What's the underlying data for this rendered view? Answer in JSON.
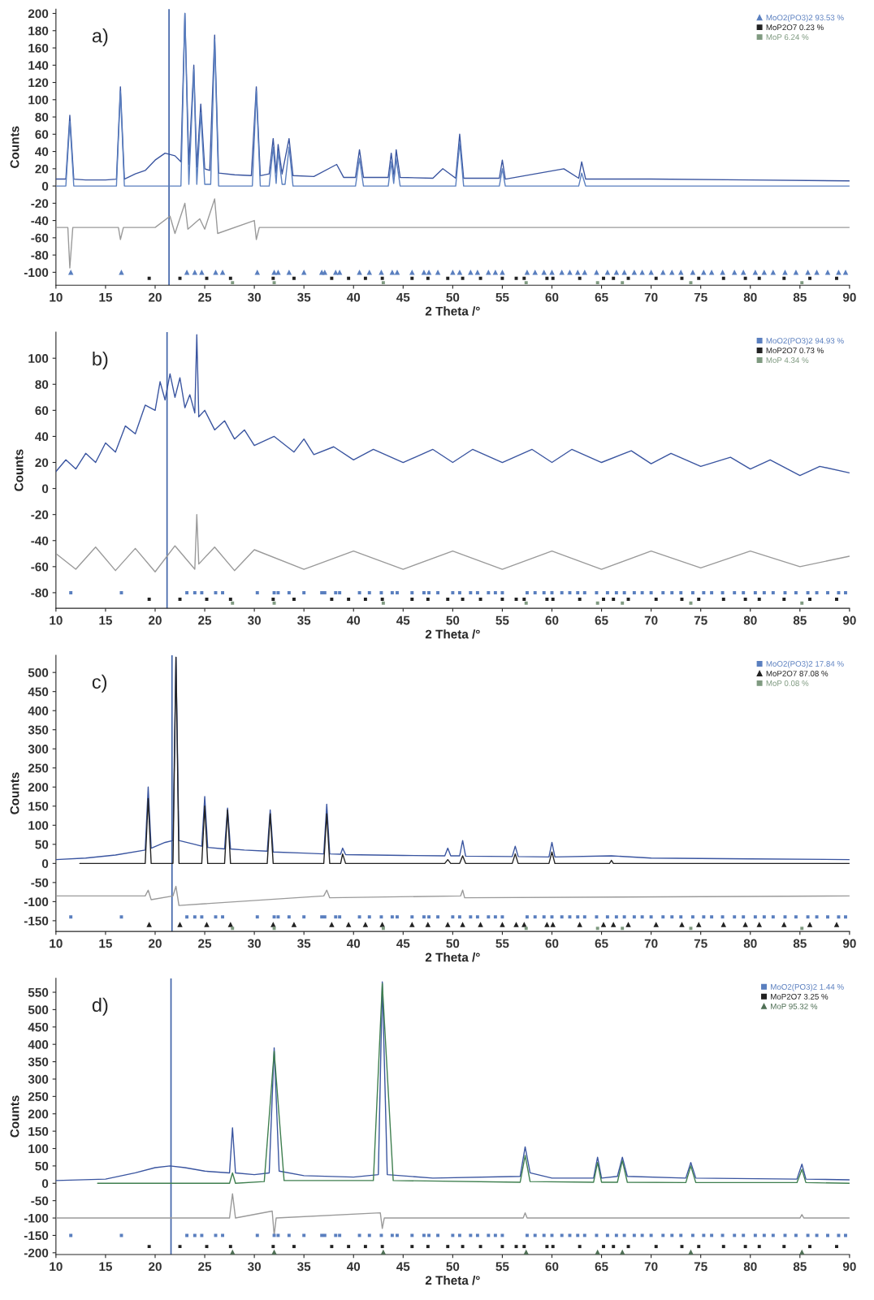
{
  "chart_data": [
    {
      "type": "line",
      "title": "a)",
      "xlabel": "2 Theta /°",
      "ylabel": "Counts",
      "xlim": [
        10,
        90
      ],
      "xticks": [
        10,
        15,
        20,
        25,
        30,
        35,
        40,
        45,
        50,
        55,
        60,
        65,
        70,
        75,
        80,
        85,
        90
      ],
      "ylim": [
        -115,
        205
      ],
      "yticks": [
        -100,
        -80,
        -60,
        -40,
        -20,
        0,
        20,
        40,
        60,
        80,
        100,
        120,
        140,
        160,
        180,
        200
      ],
      "grid": false,
      "legend": "top right",
      "ref_lines": [
        {
          "axis": "x",
          "value": 21.4,
          "color": "#3f63a8"
        }
      ],
      "series": [
        {
          "type": "line",
          "color": "#3a55a0",
          "x": [
            10,
            11.0,
            11.4,
            11.8,
            13,
            15,
            16.1,
            16.5,
            16.9,
            18,
            19,
            20,
            21,
            22,
            22.6,
            23.0,
            23.4,
            23.9,
            24.2,
            24.6,
            25.0,
            25.5,
            26.0,
            26.4,
            28,
            29.7,
            30.2,
            30.6,
            31.5,
            31.9,
            32.2,
            32.4,
            32.8,
            33.5,
            33.9,
            36,
            38.3,
            39,
            40.2,
            40.6,
            41,
            43.5,
            43.8,
            44.1,
            44.3,
            44.7,
            48,
            49,
            50.3,
            50.7,
            51.1,
            54.7,
            55,
            55.3,
            61.2,
            62.7,
            63,
            63.4,
            70,
            80,
            90
          ],
          "values": [
            8,
            8,
            82,
            8,
            7,
            7,
            8,
            115,
            8,
            14,
            18,
            30,
            38,
            35,
            28,
            200,
            25,
            140,
            22,
            95,
            20,
            18,
            175,
            15,
            13,
            12,
            115,
            12,
            14,
            55,
            15,
            48,
            14,
            55,
            12,
            11,
            25,
            10,
            10,
            42,
            10,
            10,
            38,
            10,
            42,
            10,
            9,
            20,
            9,
            60,
            9,
            9,
            30,
            8,
            20,
            9,
            28,
            8,
            8,
            7,
            6
          ]
        },
        {
          "type": "line",
          "color": "#5a7fbf",
          "x": [
            10,
            11.0,
            11.4,
            11.8,
            16.1,
            16.5,
            16.9,
            22.6,
            23.0,
            23.4,
            23.9,
            24.2,
            24.6,
            25.0,
            25.6,
            26.0,
            26.4,
            29.8,
            30.2,
            30.6,
            31.5,
            31.9,
            32.2,
            32.4,
            32.8,
            33.1,
            33.5,
            33.9,
            40.2,
            40.6,
            41,
            43.5,
            43.8,
            44.05,
            44.3,
            44.7,
            50.3,
            50.7,
            51.1,
            54.7,
            55,
            55.3,
            62.7,
            63,
            63.4,
            90
          ],
          "values": [
            0,
            0,
            75,
            0,
            0,
            110,
            0,
            0,
            200,
            2,
            135,
            2,
            85,
            2,
            2,
            170,
            0,
            0,
            110,
            0,
            0,
            45,
            3,
            40,
            2,
            2,
            45,
            0,
            0,
            32,
            0,
            0,
            28,
            3,
            32,
            0,
            0,
            50,
            0,
            0,
            20,
            0,
            0,
            15,
            0,
            0
          ]
        },
        {
          "type": "line",
          "color": "#9a9a9a",
          "x": [
            10,
            11.2,
            11.4,
            11.7,
            16.3,
            16.5,
            16.8,
            20,
            21.5,
            22,
            23.0,
            23.3,
            24.5,
            25,
            26.0,
            26.3,
            30.0,
            30.2,
            30.5,
            50,
            90
          ],
          "values": [
            -48,
            -48,
            -95,
            -48,
            -48,
            -62,
            -48,
            -48,
            -35,
            -55,
            -20,
            -50,
            -38,
            -50,
            -15,
            -55,
            -40,
            -62,
            -48,
            -48,
            -48
          ]
        },
        {
          "type": "scatter",
          "name": "MoO2(PO3)2 93.53 %",
          "color": "#5a7fbf",
          "marker": "triangle",
          "x": [
            11.5,
            16.6,
            23.2,
            24.0,
            24.7,
            26.1,
            26.8,
            30.3,
            32.0,
            32.4,
            33.5,
            35.0,
            36.8,
            37.1,
            38.2,
            38.6,
            40.6,
            41.6,
            42.8,
            43.9,
            44.4,
            45.9,
            47.1,
            47.6,
            48.5,
            50.0,
            50.7,
            51.8,
            52.5,
            53.6,
            54.3,
            55.0,
            57.5,
            58.3,
            59.2,
            60.0,
            61.0,
            61.8,
            62.6,
            63.3,
            64.5,
            65.6,
            66.5,
            67.3,
            68.3,
            69.1,
            70.0,
            71.2,
            72.1,
            73.0,
            74.2,
            75.3,
            76.1,
            77.2,
            78.4,
            79.3,
            80.5,
            81.4,
            82.3,
            83.5,
            84.6,
            85.8,
            86.7,
            87.8,
            88.9,
            89.6
          ],
          "values": [
            -100,
            -100,
            -100,
            -100,
            -100,
            -100,
            -100,
            -100,
            -100,
            -100,
            -100,
            -100,
            -100,
            -100,
            -100,
            -100,
            -100,
            -100,
            -100,
            -100,
            -100,
            -100,
            -100,
            -100,
            -100,
            -100,
            -100,
            -100,
            -100,
            -100,
            -100,
            -100,
            -100,
            -100,
            -100,
            -100,
            -100,
            -100,
            -100,
            -100,
            -100,
            -100,
            -100,
            -100,
            -100,
            -100,
            -100,
            -100,
            -100,
            -100,
            -100,
            -100,
            -100,
            -100,
            -100,
            -100,
            -100,
            -100,
            -100,
            -100,
            -100,
            -100,
            -100,
            -100,
            -100,
            -100
          ]
        },
        {
          "type": "scatter",
          "name": "MoP2O7 0.23 %",
          "color": "#222222",
          "marker": "square",
          "x": [
            19.4,
            22.5,
            25.2,
            27.6,
            31.9,
            34.0,
            37.8,
            39.5,
            41.2,
            42.9,
            45.9,
            47.5,
            49.5,
            51.0,
            52.8,
            55.0,
            56.4,
            57.2,
            59.5,
            60.1,
            62.8,
            65.2,
            66.2,
            67.7,
            70.5,
            73.1,
            74.8,
            77.3,
            79.5,
            80.9,
            83.4,
            86.0,
            88.7
          ],
          "values": [
            -107,
            -107,
            -107,
            -107,
            -107,
            -107,
            -107,
            -107,
            -107,
            -107,
            -107,
            -107,
            -107,
            -107,
            -107,
            -107,
            -107,
            -107,
            -107,
            -107,
            -107,
            -107,
            -107,
            -107,
            -107,
            -107,
            -107,
            -107,
            -107,
            -107,
            -107,
            -107,
            -107
          ]
        },
        {
          "type": "scatter",
          "name": "MoP 6.24 %",
          "color": "#7f9a80",
          "marker": "square",
          "x": [
            27.8,
            32.0,
            43.0,
            57.4,
            64.6,
            67.1,
            74.0,
            85.2
          ],
          "values": [
            -112,
            -112,
            -112,
            -112,
            -112,
            -112,
            -112,
            -112
          ]
        }
      ]
    },
    {
      "type": "line",
      "title": "b)",
      "xlabel": "2 Theta /°",
      "ylabel": "Counts",
      "xlim": [
        10,
        90
      ],
      "xticks": [
        10,
        15,
        20,
        25,
        30,
        35,
        40,
        45,
        50,
        55,
        60,
        65,
        70,
        75,
        80,
        85,
        90
      ],
      "ylim": [
        -92,
        120
      ],
      "yticks": [
        -80,
        -60,
        -40,
        -20,
        0,
        20,
        40,
        60,
        80,
        100
      ],
      "grid": false,
      "legend": "top right",
      "ref_lines": [
        {
          "axis": "x",
          "value": 21.2,
          "color": "#3f63a8"
        }
      ],
      "series": [
        {
          "type": "line",
          "color": "#3a55a0",
          "x": [
            10,
            11,
            12,
            13,
            14,
            15,
            16,
            17,
            18,
            19,
            20,
            20.5,
            21,
            21.5,
            22,
            22.5,
            23,
            23.5,
            24,
            24.2,
            24.4,
            25,
            26,
            27,
            28,
            29,
            30,
            32,
            34,
            35,
            36,
            38,
            40,
            42,
            45,
            48,
            50,
            52,
            55,
            58,
            60,
            62,
            65,
            68,
            70,
            72,
            75,
            78,
            80,
            82,
            85,
            87,
            90
          ],
          "values": [
            13,
            22,
            15,
            27,
            20,
            35,
            28,
            48,
            42,
            64,
            60,
            82,
            68,
            88,
            70,
            85,
            62,
            72,
            58,
            118,
            55,
            60,
            45,
            52,
            38,
            45,
            33,
            40,
            28,
            38,
            26,
            32,
            22,
            30,
            20,
            30,
            20,
            30,
            20,
            30,
            20,
            30,
            20,
            29,
            19,
            27,
            17,
            24,
            15,
            22,
            10,
            17,
            12
          ]
        },
        {
          "type": "line",
          "color": "#9a9a9a",
          "x": [
            10,
            12,
            14,
            16,
            18,
            20,
            22,
            24,
            24.2,
            24.4,
            26,
            28,
            30,
            35,
            40,
            45,
            50,
            55,
            60,
            65,
            70,
            75,
            80,
            85,
            90
          ],
          "values": [
            -50,
            -62,
            -45,
            -63,
            -46,
            -64,
            -44,
            -62,
            -20,
            -58,
            -45,
            -63,
            -47,
            -62,
            -48,
            -62,
            -48,
            -62,
            -48,
            -62,
            -48,
            -61,
            -48,
            -60,
            -52
          ]
        },
        {
          "type": "scatter",
          "name": "MoO2(PO3)2 94.93 %",
          "color": "#5a7fbf",
          "marker": "square",
          "x": [
            11.5,
            16.6,
            23.2,
            24.0,
            24.7,
            26.1,
            26.8,
            30.3,
            32.0,
            32.4,
            33.5,
            35.0,
            36.8,
            37.1,
            38.2,
            38.6,
            40.6,
            41.6,
            42.8,
            43.9,
            44.4,
            45.9,
            47.1,
            47.6,
            48.5,
            50.0,
            50.7,
            51.8,
            52.5,
            53.6,
            54.3,
            55.0,
            57.5,
            58.3,
            59.2,
            60.0,
            61.0,
            61.8,
            62.6,
            63.3,
            64.5,
            65.6,
            66.5,
            67.3,
            68.3,
            69.1,
            70.0,
            71.2,
            72.1,
            73.0,
            74.2,
            75.3,
            76.1,
            77.2,
            78.4,
            79.3,
            80.5,
            81.4,
            82.3,
            83.5,
            84.6,
            85.8,
            86.7,
            87.8,
            88.9,
            89.6
          ],
          "values": [
            -80,
            -80,
            -80,
            -80,
            -80,
            -80,
            -80,
            -80,
            -80,
            -80,
            -80,
            -80,
            -80,
            -80,
            -80,
            -80,
            -80,
            -80,
            -80,
            -80,
            -80,
            -80,
            -80,
            -80,
            -80,
            -80,
            -80,
            -80,
            -80,
            -80,
            -80,
            -80,
            -80,
            -80,
            -80,
            -80,
            -80,
            -80,
            -80,
            -80,
            -80,
            -80,
            -80,
            -80,
            -80,
            -80,
            -80,
            -80,
            -80,
            -80,
            -80,
            -80,
            -80,
            -80,
            -80,
            -80,
            -80,
            -80,
            -80,
            -80,
            -80,
            -80,
            -80,
            -80,
            -80,
            -80
          ]
        },
        {
          "type": "scatter",
          "name": "MoP2O7 0.73 %",
          "color": "#222222",
          "marker": "square",
          "x": [
            19.4,
            22.5,
            25.2,
            27.6,
            31.9,
            34.0,
            37.8,
            39.5,
            41.2,
            42.9,
            45.9,
            47.5,
            49.5,
            51.0,
            52.8,
            55.0,
            56.4,
            57.2,
            59.5,
            60.1,
            62.8,
            65.2,
            66.2,
            67.7,
            70.5,
            73.1,
            74.8,
            77.3,
            79.5,
            80.9,
            83.4,
            86.0,
            88.7
          ],
          "values": [
            -85,
            -85,
            -85,
            -85,
            -85,
            -85,
            -85,
            -85,
            -85,
            -85,
            -85,
            -85,
            -85,
            -85,
            -85,
            -85,
            -85,
            -85,
            -85,
            -85,
            -85,
            -85,
            -85,
            -85,
            -85,
            -85,
            -85,
            -85,
            -85,
            -85,
            -85,
            -85,
            -85
          ]
        },
        {
          "type": "scatter",
          "name": "MoP 4.34 %",
          "color": "#7f9a80",
          "marker": "square",
          "x": [
            27.8,
            32.0,
            43.0,
            57.4,
            64.6,
            67.1,
            74.0,
            85.2
          ],
          "values": [
            -88,
            -88,
            -88,
            -88,
            -88,
            -88,
            -88,
            -88
          ]
        }
      ]
    },
    {
      "type": "line",
      "title": "c)",
      "xlabel": "2 Theta /°",
      "ylabel": "Counts",
      "xlim": [
        10,
        90
      ],
      "xticks": [
        10,
        15,
        20,
        25,
        30,
        35,
        40,
        45,
        50,
        55,
        60,
        65,
        70,
        75,
        80,
        85,
        90
      ],
      "ylim": [
        -178,
        545
      ],
      "yticks": [
        -150,
        -100,
        -50,
        0,
        50,
        100,
        150,
        200,
        250,
        300,
        350,
        400,
        450,
        500
      ],
      "grid": false,
      "legend": "top right",
      "ref_lines": [
        {
          "axis": "x",
          "value": 21.7,
          "color": "#3f63a8"
        }
      ],
      "series": [
        {
          "type": "line",
          "color": "#3a55a0",
          "x": [
            10,
            13,
            16,
            19.0,
            19.3,
            19.6,
            21,
            21.8,
            22.1,
            22.4,
            24,
            24.7,
            25.0,
            25.3,
            27.0,
            27.3,
            27.6,
            29,
            31.3,
            31.6,
            31.9,
            35,
            37.0,
            37.3,
            37.6,
            38.7,
            38.9,
            39.2,
            45,
            49.2,
            49.5,
            49.8,
            50.7,
            51.0,
            51.3,
            56.0,
            56.3,
            56.6,
            59.7,
            60.0,
            60.3,
            66,
            70,
            80,
            90
          ],
          "values": [
            10,
            14,
            22,
            35,
            200,
            40,
            55,
            60,
            540,
            60,
            50,
            45,
            175,
            42,
            38,
            145,
            38,
            35,
            32,
            140,
            30,
            27,
            25,
            155,
            25,
            24,
            40,
            23,
            21,
            20,
            40,
            20,
            20,
            60,
            19,
            18,
            45,
            18,
            17,
            55,
            17,
            20,
            14,
            12,
            10
          ]
        },
        {
          "type": "line",
          "color": "#222222",
          "x": [
            12.4,
            19.0,
            19.3,
            19.6,
            21.8,
            22.1,
            22.4,
            24.7,
            25.0,
            25.3,
            27.0,
            27.3,
            27.6,
            31.3,
            31.6,
            31.9,
            37.0,
            37.3,
            37.6,
            38.7,
            38.9,
            39.2,
            49.2,
            49.5,
            49.8,
            50.7,
            51.0,
            51.3,
            56.0,
            56.3,
            56.6,
            59.7,
            60.0,
            60.3,
            65.8,
            66,
            66.2,
            90
          ],
          "values": [
            0,
            0,
            170,
            0,
            0,
            540,
            0,
            0,
            150,
            0,
            0,
            140,
            0,
            0,
            130,
            0,
            0,
            130,
            0,
            0,
            25,
            0,
            0,
            10,
            0,
            0,
            20,
            0,
            0,
            25,
            0,
            0,
            30,
            0,
            0,
            8,
            0,
            0
          ]
        },
        {
          "type": "line",
          "color": "#9a9a9a",
          "x": [
            10,
            19.0,
            19.3,
            19.6,
            21.8,
            22.1,
            22.4,
            37.0,
            37.3,
            37.6,
            50.8,
            51.0,
            51.2,
            90
          ],
          "values": [
            -85,
            -85,
            -70,
            -95,
            -85,
            -60,
            -110,
            -85,
            -70,
            -90,
            -85,
            -70,
            -90,
            -85
          ]
        },
        {
          "type": "scatter",
          "name": "MoO2(PO3)2 17.84 %",
          "color": "#5a7fbf",
          "marker": "square",
          "x": [
            11.5,
            16.6,
            23.2,
            24.0,
            24.7,
            26.1,
            26.8,
            30.3,
            32.0,
            32.4,
            33.5,
            35.0,
            36.8,
            37.1,
            38.2,
            38.6,
            40.6,
            41.6,
            42.8,
            43.9,
            44.4,
            45.9,
            47.1,
            47.6,
            48.5,
            50.0,
            50.7,
            51.8,
            52.5,
            53.6,
            54.3,
            55.0,
            57.5,
            58.3,
            59.2,
            60.0,
            61.0,
            61.8,
            62.6,
            63.3,
            64.5,
            65.6,
            66.5,
            67.3,
            68.3,
            69.1,
            70.0,
            71.2,
            72.1,
            73.0,
            74.2,
            75.3,
            76.1,
            77.2,
            78.4,
            79.3,
            80.5,
            81.4,
            82.3,
            83.5,
            84.6,
            85.8,
            86.7,
            87.8,
            88.9,
            89.6
          ],
          "values": [
            -140,
            -140,
            -140,
            -140,
            -140,
            -140,
            -140,
            -140,
            -140,
            -140,
            -140,
            -140,
            -140,
            -140,
            -140,
            -140,
            -140,
            -140,
            -140,
            -140,
            -140,
            -140,
            -140,
            -140,
            -140,
            -140,
            -140,
            -140,
            -140,
            -140,
            -140,
            -140,
            -140,
            -140,
            -140,
            -140,
            -140,
            -140,
            -140,
            -140,
            -140,
            -140,
            -140,
            -140,
            -140,
            -140,
            -140,
            -140,
            -140,
            -140,
            -140,
            -140,
            -140,
            -140,
            -140,
            -140,
            -140,
            -140,
            -140,
            -140,
            -140,
            -140,
            -140,
            -140,
            -140,
            -140
          ]
        },
        {
          "type": "scatter",
          "name": "MoP2O7 87.08 %",
          "color": "#222222",
          "marker": "triangle",
          "x": [
            19.4,
            22.5,
            25.2,
            27.6,
            31.9,
            34.0,
            37.8,
            39.5,
            41.2,
            42.9,
            45.9,
            47.5,
            49.5,
            51.0,
            52.8,
            55.0,
            56.4,
            57.2,
            59.5,
            60.1,
            62.8,
            65.2,
            66.2,
            67.7,
            70.5,
            73.1,
            74.8,
            77.3,
            79.5,
            80.9,
            83.4,
            86.0,
            88.7
          ],
          "values": [
            -160,
            -160,
            -160,
            -160,
            -160,
            -160,
            -160,
            -160,
            -160,
            -160,
            -160,
            -160,
            -160,
            -160,
            -160,
            -160,
            -160,
            -160,
            -160,
            -160,
            -160,
            -160,
            -160,
            -160,
            -160,
            -160,
            -160,
            -160,
            -160,
            -160,
            -160,
            -160,
            -160
          ]
        },
        {
          "type": "scatter",
          "name": "MoP 0.08 %",
          "color": "#7f9a80",
          "marker": "square",
          "x": [
            27.8,
            32.0,
            43.0,
            57.4,
            64.6,
            67.1,
            74.0,
            85.2
          ],
          "values": [
            -170,
            -170,
            -170,
            -170,
            -170,
            -170,
            -170,
            -170
          ]
        }
      ]
    },
    {
      "type": "line",
      "title": "d)",
      "xlabel": "2 Theta /°",
      "ylabel": "Counts",
      "xlim": [
        10,
        90
      ],
      "xticks": [
        10,
        15,
        20,
        25,
        30,
        35,
        40,
        45,
        50,
        55,
        60,
        65,
        70,
        75,
        80,
        85,
        90
      ],
      "ylim": [
        -205,
        590
      ],
      "yticks": [
        -200,
        -150,
        -100,
        -50,
        0,
        50,
        100,
        150,
        200,
        250,
        300,
        350,
        400,
        450,
        500,
        550
      ],
      "grid": false,
      "legend": "top right",
      "ref_lines": [
        {
          "axis": "x",
          "value": 21.6,
          "color": "#3f63a8"
        }
      ],
      "series": [
        {
          "type": "line",
          "color": "#3a55a0",
          "x": [
            10,
            15,
            18,
            20,
            21.5,
            23,
            25,
            27.5,
            27.8,
            28.1,
            30,
            31.5,
            32.0,
            32.5,
            35,
            40,
            42.5,
            42.9,
            43.4,
            48,
            56.8,
            57.3,
            57.8,
            60,
            64.2,
            64.6,
            65,
            66.6,
            67.1,
            67.6,
            73.5,
            74.0,
            74.5,
            84.7,
            85.2,
            85.6,
            90
          ],
          "values": [
            8,
            12,
            30,
            45,
            50,
            45,
            35,
            30,
            160,
            30,
            25,
            30,
            390,
            35,
            22,
            18,
            25,
            580,
            25,
            15,
            20,
            105,
            30,
            15,
            15,
            75,
            15,
            20,
            75,
            20,
            15,
            60,
            15,
            12,
            55,
            12,
            10
          ]
        },
        {
          "type": "line",
          "color": "#3f7f4f",
          "x": [
            14.2,
            27.5,
            27.8,
            28.1,
            31.0,
            32.0,
            33,
            42,
            42.9,
            44,
            56.8,
            57.3,
            57.8,
            64.2,
            64.6,
            65,
            66.6,
            67.1,
            67.6,
            73.5,
            74.0,
            74.5,
            84.7,
            85.2,
            85.6,
            90
          ],
          "values": [
            0,
            0,
            30,
            0,
            5,
            380,
            8,
            8,
            575,
            8,
            3,
            80,
            5,
            3,
            60,
            3,
            3,
            65,
            3,
            2,
            50,
            2,
            2,
            40,
            2,
            0
          ]
        },
        {
          "type": "line",
          "color": "#9a9a9a",
          "x": [
            10,
            27.5,
            27.8,
            28.1,
            31.8,
            32.0,
            32.2,
            42.7,
            42.9,
            43.1,
            57.1,
            57.3,
            57.5,
            85.0,
            85.2,
            85.4,
            90
          ],
          "values": [
            -100,
            -100,
            -30,
            -100,
            -80,
            -150,
            -100,
            -85,
            -130,
            -100,
            -100,
            -85,
            -100,
            -100,
            -90,
            -100,
            -100
          ]
        },
        {
          "type": "scatter",
          "name": "MoO2(PO3)2 1.44 %",
          "color": "#5a7fbf",
          "marker": "square",
          "x": [
            11.5,
            16.6,
            23.2,
            24.0,
            24.7,
            26.1,
            26.8,
            30.3,
            32.0,
            32.4,
            33.5,
            35.0,
            36.8,
            37.1,
            38.2,
            38.6,
            40.6,
            41.6,
            42.8,
            43.9,
            44.4,
            45.9,
            47.1,
            47.6,
            48.5,
            50.0,
            50.7,
            51.8,
            52.5,
            53.6,
            54.3,
            55.0,
            57.5,
            58.3,
            59.2,
            60.0,
            61.0,
            61.8,
            62.6,
            63.3,
            64.5,
            65.6,
            66.5,
            67.3,
            68.3,
            69.1,
            70.0,
            71.2,
            72.1,
            73.0,
            74.2,
            75.3,
            76.1,
            77.2,
            78.4,
            79.3,
            80.5,
            81.4,
            82.3,
            83.5,
            84.6,
            85.8,
            86.7,
            87.8,
            88.9,
            89.6
          ],
          "values": [
            -150,
            -150,
            -150,
            -150,
            -150,
            -150,
            -150,
            -150,
            -150,
            -150,
            -150,
            -150,
            -150,
            -150,
            -150,
            -150,
            -150,
            -150,
            -150,
            -150,
            -150,
            -150,
            -150,
            -150,
            -150,
            -150,
            -150,
            -150,
            -150,
            -150,
            -150,
            -150,
            -150,
            -150,
            -150,
            -150,
            -150,
            -150,
            -150,
            -150,
            -150,
            -150,
            -150,
            -150,
            -150,
            -150,
            -150,
            -150,
            -150,
            -150,
            -150,
            -150,
            -150,
            -150,
            -150,
            -150,
            -150,
            -150,
            -150,
            -150,
            -150,
            -150,
            -150,
            -150,
            -150,
            -150
          ]
        },
        {
          "type": "scatter",
          "name": "MoP2O7 3.25 %",
          "color": "#222222",
          "marker": "square",
          "x": [
            19.4,
            22.5,
            25.2,
            27.6,
            31.9,
            34.0,
            37.8,
            39.5,
            41.2,
            42.9,
            45.9,
            47.5,
            49.5,
            51.0,
            52.8,
            55.0,
            56.4,
            57.2,
            59.5,
            60.1,
            62.8,
            65.2,
            66.2,
            67.7,
            70.5,
            73.1,
            74.8,
            77.3,
            79.5,
            80.9,
            83.4,
            86.0,
            88.7
          ],
          "values": [
            -182,
            -182,
            -182,
            -182,
            -182,
            -182,
            -182,
            -182,
            -182,
            -182,
            -182,
            -182,
            -182,
            -182,
            -182,
            -182,
            -182,
            -182,
            -182,
            -182,
            -182,
            -182,
            -182,
            -182,
            -182,
            -182,
            -182,
            -182,
            -182,
            -182,
            -182,
            -182,
            -182
          ]
        },
        {
          "type": "scatter",
          "name": "MoP 95.32 %",
          "color": "#4f6f55",
          "marker": "triangle",
          "x": [
            27.8,
            32.0,
            43.0,
            57.4,
            64.6,
            67.1,
            74.0,
            85.2
          ],
          "values": [
            -198,
            -198,
            -198,
            -198,
            -198,
            -198,
            -198,
            -198
          ]
        }
      ]
    }
  ]
}
